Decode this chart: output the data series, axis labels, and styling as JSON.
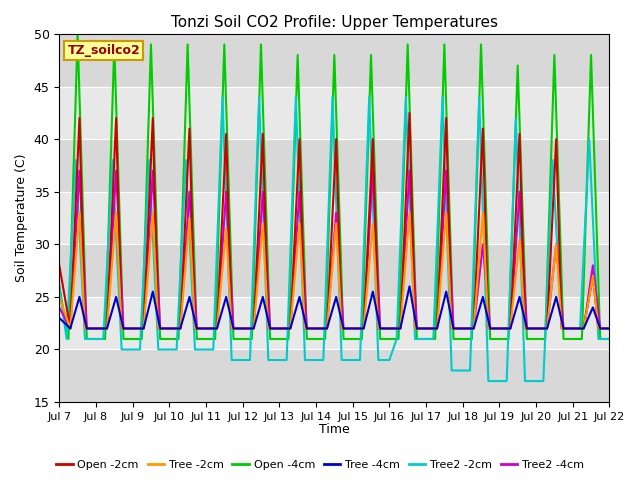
{
  "title": "Tonzi Soil CO2 Profile: Upper Temperatures",
  "ylabel": "Soil Temperature (C)",
  "xlabel": "Time",
  "ylim": [
    15,
    50
  ],
  "xlim": [
    0,
    15
  ],
  "xtick_labels": [
    "Jul 7",
    "Jul 8",
    "Jul 9",
    "Jul 10",
    "Jul 11",
    "Jul 12",
    "Jul 13",
    "Jul 14",
    "Jul 15",
    "Jul 16",
    "Jul 17",
    "Jul 18",
    "Jul 19",
    "Jul 20",
    "Jul 21",
    "Jul 22"
  ],
  "ytick_values": [
    15,
    20,
    25,
    30,
    35,
    40,
    45,
    50
  ],
  "legend_entries": [
    "Open -2cm",
    "Tree -2cm",
    "Open -4cm",
    "Tree -4cm",
    "Tree2 -2cm",
    "Tree2 -4cm"
  ],
  "legend_colors": [
    "#cc0000",
    "#ff9900",
    "#00cc00",
    "#0000cc",
    "#00cccc",
    "#cc00cc"
  ],
  "annotation_text": "TZ_soilco2",
  "annotation_bg": "#ffff99",
  "annotation_border": "#cc9900",
  "bg_color": "#d8d8d8",
  "band_color": "#e8e8e8",
  "series": {
    "open_2cm": {
      "color": "#cc0000",
      "lw": 1.5,
      "data_x": [
        0,
        0.3,
        0.55,
        0.7,
        1.0,
        1.3,
        1.55,
        1.7,
        2.0,
        2.3,
        2.55,
        2.7,
        3.0,
        3.3,
        3.55,
        3.7,
        4.0,
        4.3,
        4.55,
        4.7,
        5.0,
        5.3,
        5.55,
        5.7,
        6.0,
        6.3,
        6.55,
        6.7,
        7.0,
        7.3,
        7.55,
        7.7,
        8.0,
        8.3,
        8.55,
        8.7,
        9.0,
        9.3,
        9.55,
        9.7,
        10.0,
        10.3,
        10.55,
        10.7,
        11.0,
        11.3,
        11.55,
        11.7,
        12.0,
        12.3,
        12.55,
        12.7,
        13.0,
        13.3,
        13.55,
        13.7,
        14.0,
        14.3,
        14.55,
        14.7,
        15.0
      ],
      "data_y": [
        28,
        22,
        42,
        22,
        22,
        22,
        42,
        22,
        22,
        22,
        42,
        22,
        22,
        22,
        41,
        22,
        22,
        22,
        40.5,
        22,
        22,
        22,
        40.5,
        22,
        22,
        22,
        40,
        22,
        22,
        22,
        40,
        22,
        22,
        22,
        40,
        22,
        22,
        22,
        42.5,
        22,
        22,
        22,
        42,
        22,
        22,
        22,
        41,
        22,
        22,
        22,
        40.5,
        22,
        22,
        22,
        40,
        22,
        22,
        22,
        27,
        22,
        22
      ]
    },
    "tree_2cm": {
      "color": "#ff9900",
      "lw": 1.5,
      "data_x": [
        0,
        0.3,
        0.55,
        0.7,
        1.0,
        1.3,
        1.55,
        1.7,
        2.0,
        2.3,
        2.55,
        2.7,
        3.0,
        3.3,
        3.55,
        3.7,
        4.0,
        4.3,
        4.55,
        4.7,
        5.0,
        5.3,
        5.55,
        5.7,
        6.0,
        6.3,
        6.55,
        6.7,
        7.0,
        7.3,
        7.55,
        7.7,
        8.0,
        8.3,
        8.55,
        8.7,
        9.0,
        9.3,
        9.55,
        9.7,
        10.0,
        10.3,
        10.55,
        10.7,
        11.0,
        11.3,
        11.55,
        11.7,
        12.0,
        12.3,
        12.55,
        12.7,
        13.0,
        13.3,
        13.55,
        13.7,
        14.0,
        14.3,
        14.55,
        14.7,
        15.0
      ],
      "data_y": [
        25,
        22,
        33,
        22,
        22,
        22,
        33,
        22,
        22,
        22,
        33,
        22,
        22,
        22,
        32.5,
        22,
        22,
        22,
        31.5,
        22,
        22,
        22,
        32,
        22,
        22,
        22,
        32,
        22,
        22,
        22,
        32,
        22,
        22,
        22,
        32,
        22,
        22,
        22,
        33,
        22,
        22,
        22,
        33,
        22,
        22,
        22,
        33,
        22,
        22,
        22,
        30.5,
        22,
        22,
        22,
        30,
        22,
        22,
        22,
        27,
        22,
        22
      ]
    },
    "open_4cm": {
      "color": "#00cc00",
      "lw": 1.5,
      "data_x": [
        0,
        0.25,
        0.5,
        0.75,
        1.0,
        1.25,
        1.5,
        1.75,
        2.0,
        2.25,
        2.5,
        2.75,
        3.0,
        3.25,
        3.5,
        3.75,
        4.0,
        4.25,
        4.5,
        4.75,
        5.0,
        5.25,
        5.5,
        5.75,
        6.0,
        6.25,
        6.5,
        6.75,
        7.0,
        7.25,
        7.5,
        7.75,
        8.0,
        8.25,
        8.5,
        8.75,
        9.0,
        9.25,
        9.5,
        9.75,
        10.0,
        10.25,
        10.5,
        10.75,
        11.0,
        11.25,
        11.5,
        11.75,
        12.0,
        12.25,
        12.5,
        12.75,
        13.0,
        13.25,
        13.5,
        13.75,
        14.0,
        14.25,
        14.5,
        14.75,
        15.0
      ],
      "data_y": [
        26,
        21,
        50,
        21,
        21,
        21,
        49,
        21,
        21,
        21,
        49,
        21,
        21,
        21,
        49,
        21,
        21,
        21,
        49,
        21,
        21,
        21,
        49,
        21,
        21,
        21,
        48,
        21,
        21,
        21,
        48,
        21,
        21,
        21,
        48,
        21,
        21,
        21,
        49,
        21,
        21,
        21,
        49,
        21,
        21,
        21,
        49,
        21,
        21,
        21,
        47,
        21,
        21,
        21,
        48,
        21,
        21,
        21,
        48,
        21,
        21
      ]
    },
    "tree_4cm": {
      "color": "#0000cc",
      "lw": 1.5,
      "data_x": [
        0,
        0.3,
        0.55,
        0.75,
        1.0,
        1.3,
        1.55,
        1.75,
        2.0,
        2.3,
        2.55,
        2.75,
        3.0,
        3.3,
        3.55,
        3.75,
        4.0,
        4.3,
        4.55,
        4.75,
        5.0,
        5.3,
        5.55,
        5.75,
        6.0,
        6.3,
        6.55,
        6.75,
        7.0,
        7.3,
        7.55,
        7.75,
        8.0,
        8.3,
        8.55,
        8.75,
        9.0,
        9.3,
        9.55,
        9.75,
        10.0,
        10.3,
        10.55,
        10.75,
        11.0,
        11.3,
        11.55,
        11.75,
        12.0,
        12.3,
        12.55,
        12.75,
        13.0,
        13.3,
        13.55,
        13.75,
        14.0,
        14.3,
        14.55,
        14.75,
        15.0
      ],
      "data_y": [
        23,
        22,
        25,
        22,
        22,
        22,
        25,
        22,
        22,
        22,
        25.5,
        22,
        22,
        22,
        25,
        22,
        22,
        22,
        25,
        22,
        22,
        22,
        25,
        22,
        22,
        22,
        25,
        22,
        22,
        22,
        25,
        22,
        22,
        22,
        25.5,
        22,
        22,
        22,
        26,
        22,
        22,
        22,
        25.5,
        22,
        22,
        22,
        25,
        22,
        22,
        22,
        25,
        22,
        22,
        22,
        25,
        22,
        22,
        22,
        24,
        22,
        22
      ]
    },
    "tree2_2cm": {
      "color": "#00cccc",
      "lw": 1.5,
      "data_x": [
        0,
        0.2,
        0.45,
        0.7,
        1.0,
        1.2,
        1.45,
        1.7,
        2.0,
        2.2,
        2.45,
        2.7,
        3.0,
        3.2,
        3.45,
        3.7,
        4.0,
        4.2,
        4.45,
        4.7,
        5.0,
        5.2,
        5.45,
        5.7,
        6.0,
        6.2,
        6.45,
        6.7,
        7.0,
        7.2,
        7.45,
        7.7,
        8.0,
        8.2,
        8.45,
        8.7,
        9.0,
        9.2,
        9.45,
        9.7,
        10.0,
        10.2,
        10.45,
        10.7,
        11.0,
        11.2,
        11.45,
        11.7,
        12.0,
        12.2,
        12.45,
        12.7,
        13.0,
        13.2,
        13.45,
        13.7,
        14.0,
        14.2,
        14.45,
        14.7,
        15.0
      ],
      "data_y": [
        26,
        21,
        38,
        21,
        21,
        21,
        38,
        20,
        20,
        20,
        38,
        20,
        20,
        20,
        38,
        20,
        20,
        20,
        44,
        19,
        19,
        19,
        44,
        19,
        19,
        19,
        44,
        19,
        19,
        19,
        44,
        19,
        19,
        19,
        44,
        19,
        19,
        21,
        44,
        21,
        21,
        21,
        44,
        18,
        18,
        18,
        44,
        17,
        17,
        17,
        42,
        17,
        17,
        17,
        38,
        22,
        22,
        22,
        40,
        21,
        21
      ]
    },
    "tree2_4cm": {
      "color": "#cc00cc",
      "lw": 1.5,
      "data_x": [
        0,
        0.3,
        0.55,
        0.75,
        1.0,
        1.3,
        1.55,
        1.75,
        2.0,
        2.3,
        2.55,
        2.75,
        3.0,
        3.3,
        3.55,
        3.75,
        4.0,
        4.3,
        4.55,
        4.75,
        5.0,
        5.3,
        5.55,
        5.75,
        6.0,
        6.3,
        6.55,
        6.75,
        7.0,
        7.3,
        7.55,
        7.75,
        8.0,
        8.3,
        8.55,
        8.75,
        9.0,
        9.3,
        9.55,
        9.75,
        10.0,
        10.3,
        10.55,
        10.75,
        11.0,
        11.3,
        11.55,
        11.75,
        12.0,
        12.3,
        12.55,
        12.75,
        13.0,
        13.3,
        13.55,
        13.75,
        14.0,
        14.3,
        14.55,
        14.75,
        15.0
      ],
      "data_y": [
        24,
        22,
        37,
        22,
        22,
        22,
        37,
        22,
        22,
        22,
        37,
        22,
        22,
        22,
        35,
        22,
        22,
        22,
        35,
        22,
        22,
        22,
        35,
        22,
        22,
        22,
        35,
        22,
        22,
        22,
        33,
        22,
        22,
        22,
        37,
        22,
        22,
        22,
        37,
        22,
        22,
        22,
        37,
        22,
        22,
        22,
        30,
        22,
        22,
        22,
        35,
        22,
        22,
        22,
        30,
        22,
        22,
        22,
        28,
        22,
        22
      ]
    }
  }
}
